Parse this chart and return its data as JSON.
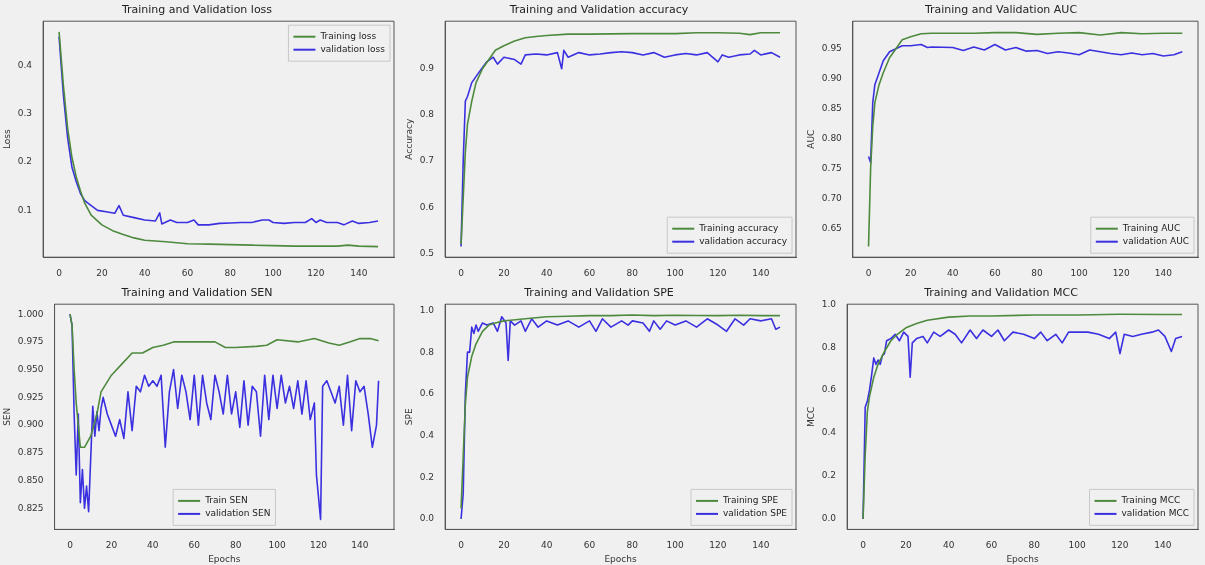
{
  "chart_data": [
    {
      "type": "line",
      "title": "Training and Validation loss",
      "ylabel": "Loss",
      "legend": "top right",
      "grid": false,
      "marker": "none",
      "xlim": [
        -7.45,
        156.45
      ],
      "ylim": [
        0.003,
        0.492
      ],
      "xticks": [
        0,
        20,
        40,
        60,
        80,
        100,
        120,
        140
      ],
      "yticks": [
        0.1,
        0.2,
        0.3,
        0.4
      ],
      "series": [
        {
          "name": "Training loss",
          "color": "#4e8a3e",
          "x": [
            0,
            2,
            4,
            6,
            8,
            10,
            12,
            15,
            20,
            25,
            30,
            35,
            40,
            50,
            60,
            70,
            80,
            90,
            100,
            110,
            120,
            130,
            135,
            140,
            149
          ],
          "values": [
            0.47,
            0.36,
            0.27,
            0.21,
            0.17,
            0.14,
            0.115,
            0.09,
            0.07,
            0.058,
            0.05,
            0.043,
            0.038,
            0.035,
            0.031,
            0.03,
            0.029,
            0.028,
            0.027,
            0.026,
            0.026,
            0.026,
            0.028,
            0.026,
            0.025
          ]
        },
        {
          "name": "validation loss",
          "color": "#3b30e0",
          "x": [
            0,
            2,
            4,
            6,
            8,
            10,
            12,
            15,
            18,
            22,
            26,
            28,
            30,
            35,
            40,
            45,
            47,
            48,
            52,
            55,
            60,
            63,
            65,
            70,
            75,
            80,
            85,
            90,
            95,
            98,
            100,
            105,
            110,
            115,
            118,
            120,
            122,
            125,
            130,
            133,
            137,
            140,
            145,
            149
          ],
          "values": [
            0.46,
            0.34,
            0.25,
            0.19,
            0.16,
            0.135,
            0.12,
            0.11,
            0.1,
            0.097,
            0.094,
            0.11,
            0.09,
            0.085,
            0.08,
            0.078,
            0.095,
            0.072,
            0.08,
            0.075,
            0.075,
            0.08,
            0.07,
            0.07,
            0.073,
            0.074,
            0.075,
            0.075,
            0.08,
            0.08,
            0.075,
            0.073,
            0.075,
            0.075,
            0.083,
            0.075,
            0.08,
            0.075,
            0.075,
            0.07,
            0.078,
            0.073,
            0.075,
            0.078
          ]
        }
      ]
    },
    {
      "type": "line",
      "title": "Training and Validation accuracy",
      "ylabel": "Accuracy",
      "legend": "bottom right",
      "grid": false,
      "marker": "none",
      "xlim": [
        -7.45,
        156.45
      ],
      "ylim": [
        0.492,
        1.003
      ],
      "xticks": [
        0,
        20,
        40,
        60,
        80,
        100,
        120,
        140
      ],
      "yticks": [
        0.5,
        0.6,
        0.7,
        0.8,
        0.9
      ],
      "series": [
        {
          "name": "Training accuracy",
          "color": "#4e8a3e",
          "x": [
            0,
            1,
            2,
            3,
            5,
            7,
            10,
            13,
            16,
            20,
            25,
            30,
            35,
            40,
            50,
            60,
            80,
            100,
            110,
            120,
            130,
            135,
            140,
            149
          ],
          "values": [
            0.52,
            0.62,
            0.72,
            0.78,
            0.83,
            0.87,
            0.9,
            0.92,
            0.94,
            0.95,
            0.96,
            0.967,
            0.97,
            0.972,
            0.975,
            0.975,
            0.976,
            0.976,
            0.978,
            0.978,
            0.977,
            0.974,
            0.978,
            0.978
          ]
        },
        {
          "name": "validation accuracy",
          "color": "#3b30e0",
          "x": [
            0,
            1,
            2,
            3,
            5,
            8,
            12,
            15,
            17,
            20,
            25,
            28,
            30,
            35,
            40,
            45,
            47,
            48,
            50,
            55,
            60,
            65,
            70,
            75,
            80,
            85,
            90,
            95,
            100,
            105,
            110,
            115,
            120,
            122,
            125,
            130,
            135,
            137,
            140,
            145,
            149
          ],
          "values": [
            0.515,
            0.7,
            0.83,
            0.84,
            0.87,
            0.89,
            0.915,
            0.925,
            0.91,
            0.925,
            0.92,
            0.91,
            0.93,
            0.932,
            0.93,
            0.935,
            0.9,
            0.94,
            0.925,
            0.935,
            0.93,
            0.932,
            0.935,
            0.937,
            0.935,
            0.93,
            0.935,
            0.925,
            0.93,
            0.933,
            0.93,
            0.935,
            0.915,
            0.93,
            0.925,
            0.93,
            0.932,
            0.94,
            0.93,
            0.935,
            0.925
          ]
        }
      ]
    },
    {
      "type": "line",
      "title": "Training and Validation AUC",
      "ylabel": "AUC",
      "legend": "bottom right",
      "grid": false,
      "marker": "none",
      "xlim": [
        -7.45,
        156.45
      ],
      "ylim": [
        0.602,
        0.996
      ],
      "xticks": [
        0,
        20,
        40,
        60,
        80,
        100,
        120,
        140
      ],
      "yticks": [
        {
          "value": 0.65,
          "label": "0.65"
        },
        {
          "value": 0.7,
          "label": "0.70"
        },
        {
          "value": 0.75,
          "label": "0.75"
        },
        {
          "value": 0.8,
          "label": "0.80"
        },
        {
          "value": 0.85,
          "label": "0.85"
        },
        {
          "value": 0.9,
          "label": "0.90"
        },
        {
          "value": 0.95,
          "label": "0.95"
        }
      ],
      "series": [
        {
          "name": "Training AUC",
          "color": "#4e8a3e",
          "x": [
            0,
            1,
            2,
            3,
            5,
            7,
            10,
            13,
            16,
            20,
            25,
            30,
            40,
            50,
            60,
            70,
            80,
            90,
            100,
            110,
            120,
            130,
            140,
            149
          ],
          "values": [
            0.62,
            0.75,
            0.82,
            0.86,
            0.89,
            0.91,
            0.935,
            0.95,
            0.965,
            0.97,
            0.975,
            0.976,
            0.976,
            0.976,
            0.977,
            0.977,
            0.974,
            0.976,
            0.977,
            0.973,
            0.977,
            0.975,
            0.976,
            0.976
          ]
        },
        {
          "name": "validation AUC",
          "color": "#3b30e0",
          "x": [
            0,
            1,
            2,
            3,
            5,
            7,
            10,
            13,
            16,
            20,
            25,
            28,
            30,
            40,
            45,
            50,
            55,
            60,
            65,
            70,
            75,
            80,
            85,
            90,
            95,
            100,
            105,
            110,
            115,
            120,
            125,
            130,
            135,
            140,
            145,
            149
          ],
          "values": [
            0.77,
            0.76,
            0.86,
            0.89,
            0.91,
            0.93,
            0.945,
            0.95,
            0.955,
            0.955,
            0.957,
            0.952,
            0.953,
            0.952,
            0.947,
            0.953,
            0.948,
            0.957,
            0.948,
            0.952,
            0.946,
            0.947,
            0.942,
            0.945,
            0.943,
            0.94,
            0.948,
            0.945,
            0.942,
            0.94,
            0.943,
            0.94,
            0.942,
            0.938,
            0.94,
            0.945
          ]
        }
      ]
    },
    {
      "type": "line",
      "title": "Training and Validation SEN",
      "xlabel": "Epochs",
      "ylabel": "SEN",
      "legend": "bottom",
      "grid": false,
      "marker": "none",
      "xlim": [
        -7.45,
        156.45
      ],
      "ylim": [
        0.806,
        1.009
      ],
      "xticks": [
        0,
        20,
        40,
        60,
        80,
        100,
        120,
        140
      ],
      "yticks": [
        {
          "value": 0.825,
          "label": "0.825"
        },
        {
          "value": 0.85,
          "label": "0.850"
        },
        {
          "value": 0.875,
          "label": "0.875"
        },
        {
          "value": 0.9,
          "label": "0.900"
        },
        {
          "value": 0.925,
          "label": "0.925"
        },
        {
          "value": 0.95,
          "label": "0.950"
        },
        {
          "value": 0.975,
          "label": "0.975"
        },
        {
          "value": 1,
          "label": "1.000"
        }
      ],
      "series": [
        {
          "name": "Train SEN",
          "color": "#4e8a3e",
          "x": [
            0,
            1,
            2,
            3,
            5,
            7,
            10,
            13,
            15,
            20,
            25,
            30,
            35,
            40,
            45,
            50,
            60,
            70,
            75,
            80,
            90,
            95,
            100,
            110,
            118,
            125,
            130,
            135,
            140,
            145,
            149
          ],
          "values": [
            1.0,
            0.99,
            0.95,
            0.92,
            0.88,
            0.88,
            0.89,
            0.91,
            0.93,
            0.945,
            0.955,
            0.965,
            0.965,
            0.97,
            0.972,
            0.975,
            0.975,
            0.975,
            0.97,
            0.97,
            0.971,
            0.972,
            0.977,
            0.975,
            0.978,
            0.974,
            0.972,
            0.975,
            0.978,
            0.978,
            0.976
          ]
        },
        {
          "name": "validation SEN",
          "color": "#3b30e0",
          "x": [
            0,
            1,
            2,
            3,
            4,
            5,
            6,
            7,
            8,
            9,
            10,
            11,
            12,
            13,
            14,
            15,
            16,
            18,
            20,
            22,
            24,
            26,
            28,
            30,
            32,
            34,
            36,
            38,
            40,
            42,
            44,
            46,
            48,
            50,
            52,
            54,
            56,
            58,
            60,
            62,
            64,
            66,
            68,
            70,
            72,
            74,
            76,
            78,
            80,
            82,
            84,
            86,
            88,
            90,
            92,
            94,
            96,
            98,
            100,
            102,
            104,
            106,
            108,
            110,
            112,
            114,
            116,
            118,
            119,
            121,
            122,
            124,
            126,
            128,
            130,
            132,
            134,
            136,
            138,
            140,
            142,
            144,
            146,
            148,
            149
          ],
          "values": [
            1.0,
            0.99,
            0.91,
            0.855,
            0.91,
            0.83,
            0.86,
            0.825,
            0.845,
            0.822,
            0.87,
            0.917,
            0.89,
            0.912,
            0.895,
            0.915,
            0.925,
            0.91,
            0.9,
            0.89,
            0.905,
            0.888,
            0.93,
            0.895,
            0.935,
            0.93,
            0.945,
            0.935,
            0.94,
            0.935,
            0.945,
            0.88,
            0.93,
            0.95,
            0.915,
            0.945,
            0.93,
            0.905,
            0.945,
            0.9,
            0.945,
            0.92,
            0.905,
            0.945,
            0.93,
            0.91,
            0.945,
            0.91,
            0.93,
            0.898,
            0.94,
            0.9,
            0.935,
            0.93,
            0.89,
            0.945,
            0.905,
            0.945,
            0.915,
            0.945,
            0.92,
            0.935,
            0.915,
            0.94,
            0.91,
            0.94,
            0.905,
            0.92,
            0.855,
            0.815,
            0.935,
            0.94,
            0.93,
            0.92,
            0.935,
            0.9,
            0.945,
            0.895,
            0.94,
            0.93,
            0.935,
            0.91,
            0.88,
            0.9,
            0.94
          ]
        }
      ]
    },
    {
      "type": "line",
      "title": "Training and Validation SPE",
      "xlabel": "Epochs",
      "ylabel": "SPE",
      "legend": "bottom right",
      "grid": false,
      "marker": "none",
      "xlim": [
        -7.45,
        156.45
      ],
      "ylim": [
        -0.05,
        1.03
      ],
      "xticks": [
        0,
        20,
        40,
        60,
        80,
        100,
        120,
        140
      ],
      "yticks": [
        {
          "value": 0,
          "label": "0.0"
        },
        {
          "value": 0.2,
          "label": "0.2"
        },
        {
          "value": 0.4,
          "label": "0.4"
        },
        {
          "value": 0.6,
          "label": "0.6"
        },
        {
          "value": 0.8,
          "label": "0.8"
        },
        {
          "value": 1,
          "label": "1.0"
        }
      ],
      "series": [
        {
          "name": "Training SPE",
          "color": "#4e8a3e",
          "x": [
            0,
            1,
            2,
            3,
            5,
            7,
            10,
            13,
            16,
            20,
            30,
            40,
            50,
            60,
            70,
            80,
            90,
            100,
            110,
            120,
            130,
            140,
            149
          ],
          "values": [
            0.05,
            0.3,
            0.55,
            0.68,
            0.78,
            0.84,
            0.9,
            0.93,
            0.94,
            0.95,
            0.96,
            0.97,
            0.972,
            0.975,
            0.975,
            0.978,
            0.975,
            0.977,
            0.976,
            0.975,
            0.977,
            0.975,
            0.975
          ]
        },
        {
          "name": "validation SPE",
          "color": "#3b30e0",
          "x": [
            0,
            1,
            2,
            3,
            4,
            5,
            6,
            7,
            8,
            10,
            12,
            15,
            17,
            19,
            21,
            22,
            23,
            25,
            28,
            30,
            33,
            36,
            40,
            45,
            50,
            55,
            60,
            63,
            66,
            70,
            75,
            78,
            80,
            85,
            88,
            90,
            93,
            96,
            100,
            105,
            110,
            115,
            120,
            124,
            128,
            132,
            135,
            140,
            145,
            147,
            149
          ],
          "values": [
            0.0,
            0.12,
            0.6,
            0.8,
            0.8,
            0.92,
            0.89,
            0.93,
            0.9,
            0.94,
            0.93,
            0.94,
            0.9,
            0.97,
            0.94,
            0.76,
            0.95,
            0.93,
            0.95,
            0.9,
            0.96,
            0.92,
            0.95,
            0.93,
            0.95,
            0.92,
            0.95,
            0.9,
            0.96,
            0.92,
            0.95,
            0.93,
            0.95,
            0.94,
            0.9,
            0.95,
            0.91,
            0.95,
            0.93,
            0.95,
            0.92,
            0.96,
            0.93,
            0.9,
            0.96,
            0.93,
            0.96,
            0.95,
            0.96,
            0.91,
            0.92
          ]
        }
      ]
    },
    {
      "type": "line",
      "title": "Training and Validation MCC",
      "xlabel": "Epochs",
      "ylabel": "MCC",
      "legend": "bottom right",
      "grid": false,
      "marker": "none",
      "xlim": [
        -7.45,
        156.45
      ],
      "ylim": [
        -0.048,
        1.0
      ],
      "xticks": [
        0,
        20,
        40,
        60,
        80,
        100,
        120,
        140
      ],
      "yticks": [
        {
          "value": 0,
          "label": "0.0"
        },
        {
          "value": 0.2,
          "label": "0.2"
        },
        {
          "value": 0.4,
          "label": "0.4"
        },
        {
          "value": 0.6,
          "label": "0.6"
        },
        {
          "value": 0.8,
          "label": "0.8"
        },
        {
          "value": 1,
          "label": "1.0"
        }
      ],
      "series": [
        {
          "name": "Training MCC",
          "color": "#4e8a3e",
          "x": [
            0,
            1,
            2,
            3,
            5,
            7,
            10,
            13,
            16,
            20,
            25,
            30,
            40,
            50,
            60,
            80,
            100,
            120,
            140,
            149
          ],
          "values": [
            0.0,
            0.3,
            0.5,
            0.57,
            0.66,
            0.72,
            0.78,
            0.83,
            0.86,
            0.89,
            0.91,
            0.925,
            0.94,
            0.945,
            0.945,
            0.95,
            0.95,
            0.953,
            0.952,
            0.952
          ]
        },
        {
          "name": "validation MCC",
          "color": "#3b30e0",
          "x": [
            0,
            1,
            2,
            3,
            4,
            5,
            6,
            7,
            8,
            9,
            10,
            11,
            13,
            15,
            17,
            19,
            21,
            22,
            23,
            25,
            28,
            30,
            33,
            36,
            40,
            43,
            46,
            50,
            53,
            56,
            60,
            63,
            66,
            70,
            75,
            80,
            83,
            86,
            90,
            93,
            96,
            100,
            105,
            110,
            115,
            118,
            120,
            122,
            126,
            130,
            135,
            138,
            141,
            144,
            146,
            149
          ],
          "values": [
            0.0,
            0.52,
            0.55,
            0.6,
            0.67,
            0.75,
            0.72,
            0.74,
            0.72,
            0.76,
            0.77,
            0.83,
            0.84,
            0.86,
            0.83,
            0.87,
            0.85,
            0.66,
            0.82,
            0.84,
            0.85,
            0.82,
            0.87,
            0.85,
            0.88,
            0.86,
            0.82,
            0.88,
            0.84,
            0.88,
            0.85,
            0.88,
            0.83,
            0.87,
            0.86,
            0.84,
            0.87,
            0.83,
            0.86,
            0.82,
            0.87,
            0.87,
            0.87,
            0.86,
            0.84,
            0.87,
            0.77,
            0.86,
            0.85,
            0.86,
            0.87,
            0.88,
            0.85,
            0.78,
            0.84,
            0.85
          ]
        }
      ]
    }
  ]
}
